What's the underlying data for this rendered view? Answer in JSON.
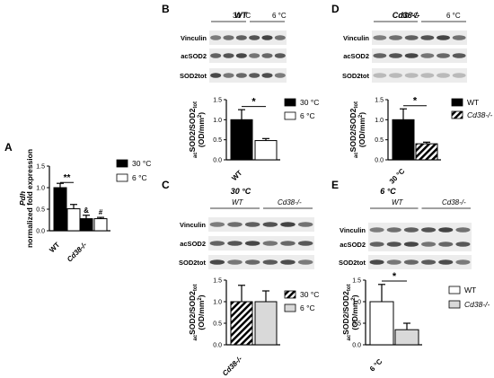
{
  "chart_data": [
    {
      "panel": "A",
      "type": "bar",
      "ylabel_italic": "Pdh",
      "ylabel": "normalized fold expression",
      "ylim": [
        0,
        1.5
      ],
      "yticks": [
        "0.0",
        "0.5",
        "1.0",
        "1.5"
      ],
      "categories": [
        "WT",
        "Cd38-/-"
      ],
      "categories_italic": [
        false,
        true
      ],
      "series": [
        {
          "name": "30 °C",
          "fill": "#000000",
          "values": [
            1.0,
            0.28
          ],
          "errors": [
            0.1,
            0.08
          ]
        },
        {
          "name": "6 °C",
          "fill": "#ffffff",
          "values": [
            0.51,
            0.28
          ],
          "errors": [
            0.1,
            0.03
          ]
        }
      ],
      "annotations": [
        "**",
        "&",
        "#"
      ]
    },
    {
      "panel": "B",
      "title": "WT",
      "type": "bar",
      "ylabel_sub": "ac",
      "ylabel_mid": "SOD2/SOD2",
      "ylabel_sub2": "tot",
      "ylabel_unit": "(OD/mm",
      "ylabel_sup": "2",
      "ylabel_close": ")",
      "ylim": [
        0,
        1.5
      ],
      "yticks": [
        "0.0",
        "0.5",
        "1.0",
        "1.5"
      ],
      "category": "WT",
      "category_italic": false,
      "series": [
        {
          "name": "30 °C",
          "fill": "#000000",
          "value": 1.0,
          "error": 0.25
        },
        {
          "name": "6 °C",
          "fill": "#ffffff",
          "value": 0.48,
          "error": 0.05
        }
      ],
      "annotation": "*"
    },
    {
      "panel": "D",
      "title": "Cd38-/-",
      "type": "bar",
      "ylabel_sub": "ac",
      "ylabel_mid": "SOD2/SOD2",
      "ylabel_sub2": "tot",
      "ylabel_unit": "(OD/mm",
      "ylabel_sup": "2",
      "ylabel_close": ")",
      "ylim": [
        0,
        1.5
      ],
      "yticks": [
        "0.0",
        "0.5",
        "1.0",
        "1.5"
      ],
      "category": "30 °C",
      "category_italic": false,
      "series": [
        {
          "name": "WT",
          "fill": "#000000",
          "value": 1.0,
          "error": 0.27
        },
        {
          "name": "Cd38-/-",
          "fill": "hatch",
          "value": 0.4,
          "error": 0.04
        }
      ],
      "annotation": "*"
    },
    {
      "panel": "C",
      "title": "30 °C",
      "type": "bar",
      "ylabel_sub": "ac",
      "ylabel_mid": "SOD2/SOD2",
      "ylabel_sub2": "tot",
      "ylabel_unit": "(OD/mm",
      "ylabel_sup": "2",
      "ylabel_close": ")",
      "ylim": [
        0,
        1.5
      ],
      "yticks": [
        "0.0",
        "0.5",
        "1.0",
        "1.5"
      ],
      "category": "Cd38-/-",
      "category_italic": true,
      "series": [
        {
          "name": "30 °C",
          "fill": "hatch",
          "value": 1.0,
          "error": 0.38
        },
        {
          "name": "6 °C",
          "fill": "#d9d9d9",
          "value": 1.0,
          "error": 0.25
        }
      ]
    },
    {
      "panel": "E",
      "title": "6 °C",
      "type": "bar",
      "ylabel_sub": "ac",
      "ylabel_mid": "SOD2/SOD2",
      "ylabel_sub2": "tot",
      "ylabel_unit": "(OD/mm",
      "ylabel_sup": "2",
      "ylabel_close": ")",
      "ylim": [
        0,
        1.5
      ],
      "yticks": [
        "0.0",
        "0.5",
        "1.0",
        "1.5"
      ],
      "category": "6 °C",
      "category_italic": false,
      "series": [
        {
          "name": "WT",
          "fill": "#ffffff",
          "value": 1.0,
          "error": 0.4
        },
        {
          "name": "Cd38-/-",
          "fill": "#d9d9d9",
          "value": 0.35,
          "error": 0.15
        }
      ],
      "annotation": "*"
    }
  ],
  "blots": [
    {
      "panel": "B",
      "groups": [
        "30 °C",
        "6 °C"
      ],
      "groups_italic": [
        false,
        false
      ],
      "rows": [
        "Vinculin",
        "acSOD2",
        "SOD2tot"
      ]
    },
    {
      "panel": "D",
      "groups": [
        "30 °C",
        "6 °C"
      ],
      "groups_italic": [
        false,
        false
      ],
      "rows": [
        "Vinculin",
        "acSOD2",
        "SOD2tot"
      ]
    },
    {
      "panel": "C",
      "groups": [
        "WT",
        "Cd38-/-"
      ],
      "groups_italic": [
        true,
        true
      ],
      "rows": [
        "Vinculin",
        "acSOD2",
        "SOD2tot"
      ]
    },
    {
      "panel": "E",
      "groups": [
        "WT",
        "Cd38-/-"
      ],
      "groups_italic": [
        true,
        true
      ],
      "rows": [
        "Vinculin",
        "acSOD2",
        "SOD2tot"
      ]
    }
  ],
  "colors": {
    "hatch": "#000000",
    "gray_bar": "#d9d9d9"
  }
}
